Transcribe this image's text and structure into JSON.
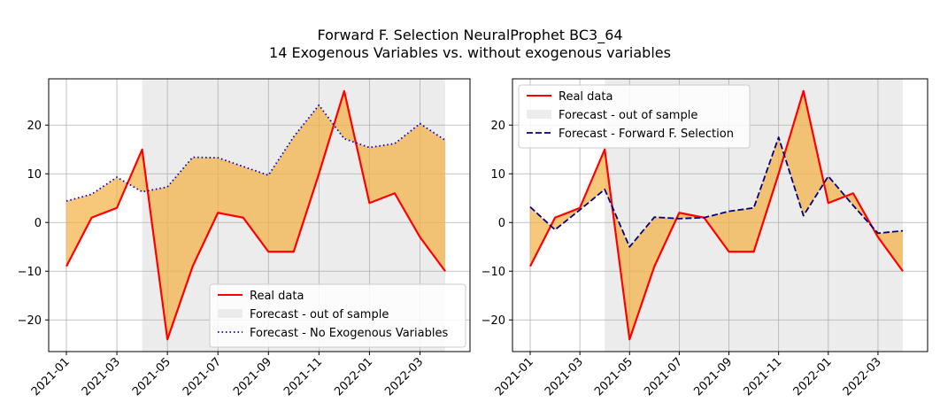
{
  "figure": {
    "title_line1": "Forward F. Selection NeuralProphet BC3_64",
    "title_line2": "14 Exogenous Variables vs. without exogenous variables"
  },
  "chart_data": [
    {
      "type": "line",
      "panel": "left",
      "x_labels": [
        "2021-01",
        "2021-02",
        "2021-03",
        "2021-04",
        "2021-05",
        "2021-06",
        "2021-07",
        "2021-08",
        "2021-09",
        "2021-10",
        "2021-11",
        "2021-12",
        "2022-01",
        "2022-02",
        "2022-03",
        "2022-04"
      ],
      "tick_labels": [
        "2021-01",
        "2021-03",
        "2021-05",
        "2021-07",
        "2021-09",
        "2021-11",
        "2022-01",
        "2022-03"
      ],
      "series": [
        {
          "name": "Real data",
          "color": "#ff0000",
          "style": "solid",
          "values": [
            -9,
            1,
            3,
            15,
            -24,
            -9,
            2,
            1,
            -6,
            -6,
            10,
            27,
            4,
            6,
            -3,
            -10
          ]
        },
        {
          "name": "Forecast - No Exogenous Variables",
          "color": "#0000cd",
          "style": "dotted",
          "values": [
            4.4,
            5.8,
            9.3,
            6.3,
            7.3,
            13.4,
            13.3,
            11.5,
            9.7,
            17.6,
            24.1,
            17.2,
            15.4,
            16.2,
            20.3,
            16.9
          ]
        }
      ],
      "shaded_region": {
        "label": "Forecast - out of sample",
        "from": "2021-04",
        "to": "2022-04",
        "color": "#ececec"
      },
      "fill_between_color": "#f5b041",
      "yticks": [
        -20,
        -10,
        0,
        10,
        20
      ],
      "ylim": [
        -26.5,
        29.5
      ],
      "grid": true,
      "legend_location": "lower-right",
      "legend": [
        "Real data",
        "Forecast - out of sample",
        "Forecast - No Exogenous Variables"
      ]
    },
    {
      "type": "line",
      "panel": "right",
      "x_labels": [
        "2021-01",
        "2021-02",
        "2021-03",
        "2021-04",
        "2021-05",
        "2021-06",
        "2021-07",
        "2021-08",
        "2021-09",
        "2021-10",
        "2021-11",
        "2021-12",
        "2022-01",
        "2022-02",
        "2022-03",
        "2022-04"
      ],
      "tick_labels": [
        "2021-01",
        "2021-03",
        "2021-05",
        "2021-07",
        "2021-09",
        "2021-11",
        "2022-01",
        "2022-03"
      ],
      "series": [
        {
          "name": "Real data",
          "color": "#ff0000",
          "style": "solid",
          "values": [
            -9,
            1,
            3,
            15,
            -24,
            -9,
            2,
            1,
            -6,
            -6,
            10,
            27,
            4,
            6,
            -3,
            -10
          ]
        },
        {
          "name": "Forecast - Forward F. Selection",
          "color": "#000080",
          "style": "dashed",
          "values": [
            3.2,
            -1.5,
            2.6,
            6.8,
            -5.0,
            1.1,
            0.8,
            1.0,
            2.3,
            3.0,
            17.5,
            1.4,
            9.5,
            3.5,
            -2.2,
            -1.7
          ]
        }
      ],
      "shaded_region": {
        "label": "Forecast - out of sample",
        "from": "2021-04",
        "to": "2022-04",
        "color": "#ececec"
      },
      "fill_between_color": "#f5b041",
      "yticks": [
        -20,
        -10,
        0,
        10,
        20
      ],
      "ylim": [
        -26.5,
        29.5
      ],
      "grid": true,
      "legend_location": "upper-left",
      "legend": [
        "Real data",
        "Forecast - out of sample",
        "Forecast - Forward F. Selection"
      ]
    }
  ]
}
